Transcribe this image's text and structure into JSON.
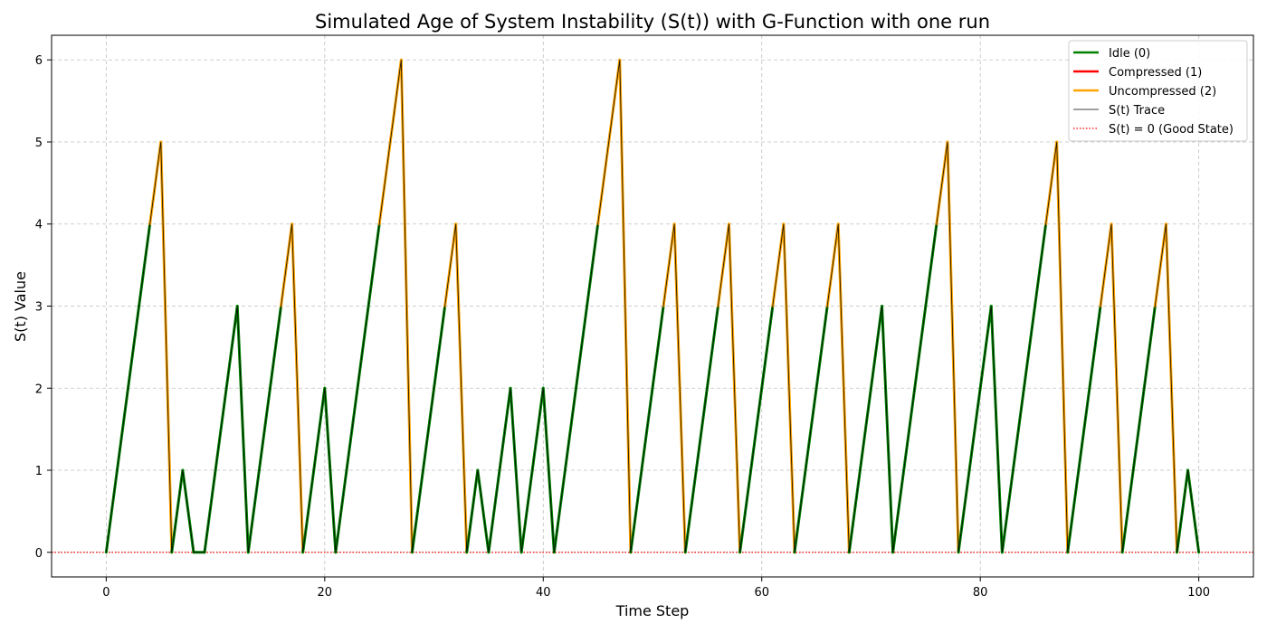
{
  "chart_data": {
    "type": "line",
    "title": "Simulated Age of System Instability (S(t)) with G-Function with one run",
    "xlabel": "Time Step",
    "ylabel": "S(t) Value",
    "xlim": [
      -5,
      105
    ],
    "ylim": [
      -0.3,
      6.3
    ],
    "xticks": [
      0,
      20,
      40,
      60,
      80,
      100
    ],
    "yticks": [
      0,
      1,
      2,
      3,
      4,
      5,
      6
    ],
    "grid": true,
    "legend_position": "top-right",
    "colors": {
      "idle": "#008000",
      "compressed": "#ff0000",
      "uncompressed": "#ffa500",
      "trace": "#000000",
      "baseline": "#ff0000",
      "grid": "#c0c0c0"
    },
    "legend": [
      {
        "key": "idle",
        "label": "Idle (0)",
        "style": "thick"
      },
      {
        "key": "compressed",
        "label": "Compressed (1)",
        "style": "thick"
      },
      {
        "key": "uncompressed",
        "label": "Uncompressed (2)",
        "style": "thick"
      },
      {
        "key": "trace",
        "label": "S(t) Trace",
        "style": "thin"
      },
      {
        "key": "baseline",
        "label": "S(t) = 0 (Good State)",
        "style": "dotted"
      }
    ],
    "baseline_y": 0,
    "x": [
      0,
      1,
      2,
      3,
      4,
      5,
      6,
      7,
      8,
      9,
      10,
      11,
      12,
      13,
      14,
      15,
      16,
      17,
      18,
      19,
      20,
      21,
      22,
      23,
      24,
      25,
      26,
      27,
      28,
      29,
      30,
      31,
      32,
      33,
      34,
      35,
      36,
      37,
      38,
      39,
      40,
      41,
      42,
      43,
      44,
      45,
      46,
      47,
      48,
      49,
      50,
      51,
      52,
      53,
      54,
      55,
      56,
      57,
      58,
      59,
      60,
      61,
      62,
      63,
      64,
      65,
      66,
      67,
      68,
      69,
      70,
      71,
      72,
      73,
      74,
      75,
      76,
      77,
      78,
      79,
      80,
      81,
      82,
      83,
      84,
      85,
      86,
      87,
      88,
      89,
      90,
      91,
      92,
      93,
      94,
      95,
      96,
      97,
      98,
      99,
      100
    ],
    "s_values": [
      0,
      1,
      2,
      3,
      4,
      5,
      0,
      1,
      0,
      0,
      1,
      2,
      3,
      0,
      1,
      2,
      3,
      4,
      0,
      1,
      2,
      0,
      1,
      2,
      3,
      4,
      5,
      6,
      0,
      1,
      2,
      3,
      4,
      0,
      1,
      0,
      1,
      2,
      0,
      1,
      2,
      0,
      1,
      2,
      3,
      4,
      5,
      6,
      0,
      1,
      2,
      3,
      4,
      0,
      1,
      2,
      3,
      4,
      0,
      1,
      2,
      3,
      4,
      0,
      1,
      2,
      3,
      4,
      0,
      1,
      2,
      3,
      0,
      1,
      2,
      3,
      4,
      5,
      0,
      1,
      2,
      3,
      0,
      1,
      2,
      3,
      4,
      5,
      0,
      1,
      2,
      3,
      4,
      0,
      1,
      2,
      3,
      4,
      0,
      1,
      0
    ],
    "actions": [
      0,
      0,
      0,
      0,
      2,
      2,
      0,
      0,
      0,
      0,
      0,
      0,
      0,
      0,
      0,
      0,
      2,
      2,
      0,
      0,
      0,
      0,
      0,
      0,
      0,
      2,
      2,
      2,
      0,
      0,
      0,
      2,
      2,
      0,
      0,
      0,
      0,
      0,
      0,
      0,
      0,
      0,
      0,
      0,
      0,
      2,
      2,
      2,
      0,
      0,
      0,
      2,
      2,
      0,
      0,
      0,
      2,
      2,
      0,
      0,
      0,
      2,
      2,
      0,
      0,
      0,
      2,
      2,
      0,
      0,
      0,
      0,
      0,
      0,
      0,
      0,
      2,
      2,
      0,
      0,
      0,
      0,
      0,
      0,
      0,
      0,
      2,
      2,
      0,
      0,
      0,
      2,
      2,
      0,
      0,
      0,
      2,
      2,
      0,
      0,
      0
    ]
  }
}
